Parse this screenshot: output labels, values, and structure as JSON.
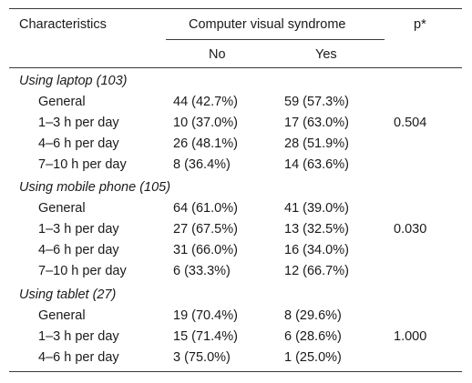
{
  "header": {
    "characteristics": "Characteristics",
    "cvs": "Computer visual syndrome",
    "p": "p*",
    "no": "No",
    "yes": "Yes"
  },
  "groups": [
    {
      "label": "Using laptop (103)",
      "p": "0.504",
      "rows": [
        {
          "label": "General",
          "no": "44 (42.7%)",
          "yes": "59 (57.3%)"
        },
        {
          "label": "1–3 h per day",
          "no": "10 (37.0%)",
          "yes": "17 (63.0%)"
        },
        {
          "label": "4–6 h per day",
          "no": "26 (48.1%)",
          "yes": "28 (51.9%)"
        },
        {
          "label": "7–10 h per day",
          "no": "8 (36.4%)",
          "yes": "14 (63.6%)"
        }
      ]
    },
    {
      "label": "Using mobile phone (105)",
      "p": "0.030",
      "rows": [
        {
          "label": "General",
          "no": "64 (61.0%)",
          "yes": "41 (39.0%)"
        },
        {
          "label": "1–3 h per day",
          "no": "27 (67.5%)",
          "yes": "13 (32.5%)"
        },
        {
          "label": "4–6 h per day",
          "no": "31 (66.0%)",
          "yes": "16 (34.0%)"
        },
        {
          "label": "7–10 h per day",
          "no": "6 (33.3%)",
          "yes": "12 (66.7%)"
        }
      ]
    },
    {
      "label": "Using tablet (27)",
      "p": "1.000",
      "rows": [
        {
          "label": "General",
          "no": "19 (70.4%)",
          "yes": "8 (29.6%)"
        },
        {
          "label": "1–3 h per day",
          "no": "15 (71.4%)",
          "yes": "6 (28.6%)"
        },
        {
          "label": "4–6 h per day",
          "no": "3 (75.0%)",
          "yes": "1 (25.0%)"
        }
      ]
    }
  ]
}
